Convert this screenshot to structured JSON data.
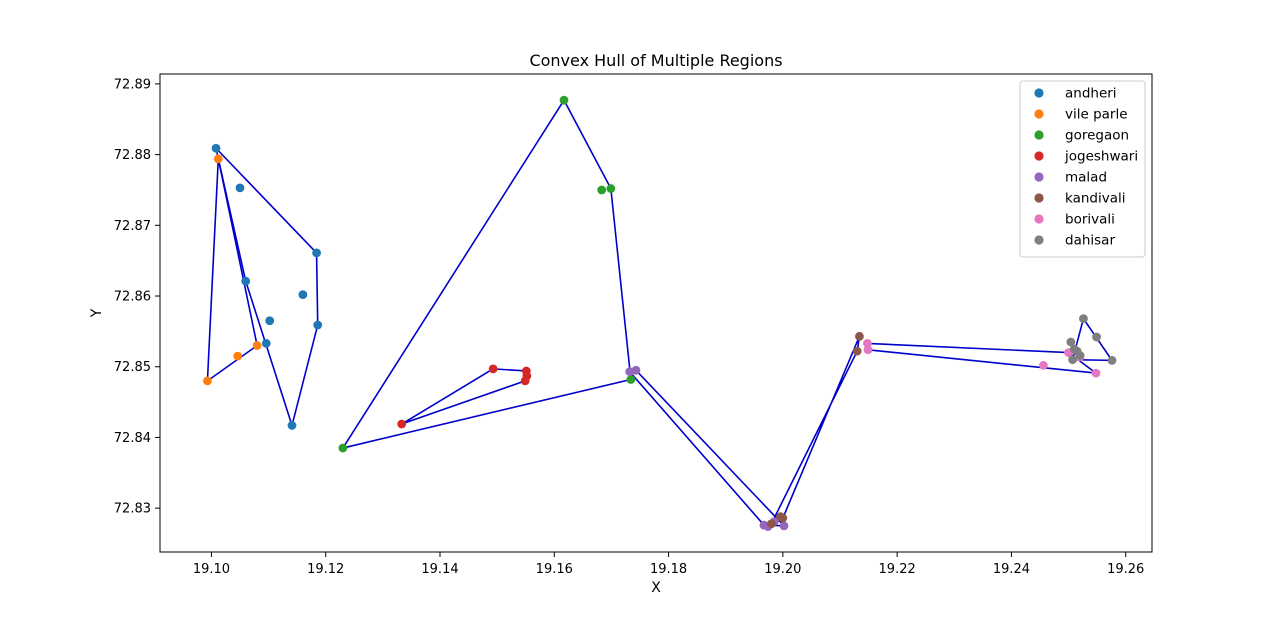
{
  "chart_data": {
    "type": "scatter",
    "title": "Convex Hull of Multiple Regions",
    "xlabel": "X",
    "ylabel": "Y",
    "xlim": [
      19.091,
      19.2646
    ],
    "ylim": [
      72.8238,
      72.8914
    ],
    "xticks": [
      "19.10",
      "19.12",
      "19.14",
      "19.16",
      "19.18",
      "19.20",
      "19.22",
      "19.24",
      "19.26"
    ],
    "yticks": [
      "72.83",
      "72.84",
      "72.85",
      "72.86",
      "72.87",
      "72.88",
      "72.89"
    ],
    "legend_position": "top-right",
    "hull_color": "#0000cc",
    "series": [
      {
        "name": "andheri",
        "color": "#1f77b4",
        "points": [
          [
            19.1008,
            72.8809
          ],
          [
            19.105,
            72.8753
          ],
          [
            19.1184,
            72.8661
          ],
          [
            19.116,
            72.8602
          ],
          [
            19.106,
            72.8621
          ],
          [
            19.1102,
            72.8565
          ],
          [
            19.1186,
            72.8559
          ],
          [
            19.1096,
            72.8533
          ],
          [
            19.1141,
            72.8417
          ]
        ]
      },
      {
        "name": "vile parle",
        "color": "#ff7f0e",
        "points": [
          [
            19.1012,
            72.8794
          ],
          [
            19.108,
            72.853
          ],
          [
            19.1046,
            72.8515
          ],
          [
            19.0993,
            72.848
          ]
        ]
      },
      {
        "name": "goregaon",
        "color": "#2ca02c",
        "points": [
          [
            19.1617,
            72.8877
          ],
          [
            19.1683,
            72.875
          ],
          [
            19.1699,
            72.8752
          ],
          [
            19.1734,
            72.8482
          ],
          [
            19.123,
            72.8385
          ]
        ]
      },
      {
        "name": "jogeshwari",
        "color": "#d62728",
        "points": [
          [
            19.1493,
            72.8497
          ],
          [
            19.1551,
            72.8494
          ],
          [
            19.1552,
            72.8487
          ],
          [
            19.1549,
            72.848
          ],
          [
            19.1333,
            72.8419
          ]
        ]
      },
      {
        "name": "malad",
        "color": "#9467bd",
        "points": [
          [
            19.1743,
            72.8495
          ],
          [
            19.1732,
            72.8493
          ],
          [
            19.1967,
            72.8276
          ],
          [
            19.1985,
            72.8281
          ],
          [
            19.2002,
            72.8275
          ],
          [
            19.1974,
            72.8274
          ]
        ]
      },
      {
        "name": "kandivali",
        "color": "#8c564b",
        "points": [
          [
            19.2134,
            72.8543
          ],
          [
            19.213,
            72.8522
          ],
          [
            19.1996,
            72.8288
          ],
          [
            19.198,
            72.8278
          ],
          [
            19.2,
            72.8286
          ]
        ]
      },
      {
        "name": "borivali",
        "color": "#e377c2",
        "points": [
          [
            19.2148,
            72.8533
          ],
          [
            19.2149,
            72.8524
          ],
          [
            19.2456,
            72.8502
          ],
          [
            19.2548,
            72.8491
          ],
          [
            19.25,
            72.852
          ],
          [
            19.252,
            72.8514
          ]
        ]
      },
      {
        "name": "dahisar",
        "color": "#7f7f7f",
        "points": [
          [
            19.2526,
            72.8568
          ],
          [
            19.2549,
            72.8542
          ],
          [
            19.2576,
            72.8509
          ],
          [
            19.2504,
            72.8535
          ],
          [
            19.251,
            72.8525
          ],
          [
            19.2515,
            72.8522
          ],
          [
            19.2507,
            72.851
          ],
          [
            19.252,
            72.8516
          ]
        ]
      }
    ],
    "hulls": [
      [
        [
          19.1008,
          72.8809
        ],
        [
          19.1184,
          72.8661
        ],
        [
          19.1186,
          72.8559
        ],
        [
          19.1141,
          72.8417
        ],
        [
          19.106,
          72.8621
        ],
        [
          19.1008,
          72.8809
        ]
      ],
      [
        [
          19.1012,
          72.8794
        ],
        [
          19.108,
          72.853
        ],
        [
          19.0993,
          72.848
        ],
        [
          19.1012,
          72.8794
        ]
      ],
      [
        [
          19.1617,
          72.8877
        ],
        [
          19.1699,
          72.8752
        ],
        [
          19.1734,
          72.8482
        ],
        [
          19.123,
          72.8385
        ],
        [
          19.1617,
          72.8877
        ]
      ],
      [
        [
          19.1493,
          72.8497
        ],
        [
          19.1551,
          72.8494
        ],
        [
          19.1549,
          72.848
        ],
        [
          19.1333,
          72.8419
        ],
        [
          19.1493,
          72.8497
        ]
      ],
      [
        [
          19.1743,
          72.8495
        ],
        [
          19.2002,
          72.8275
        ],
        [
          19.1967,
          72.8276
        ],
        [
          19.1732,
          72.8493
        ],
        [
          19.1743,
          72.8495
        ]
      ],
      [
        [
          19.2134,
          72.8543
        ],
        [
          19.2,
          72.8286
        ],
        [
          19.198,
          72.8278
        ],
        [
          19.213,
          72.8522
        ],
        [
          19.2134,
          72.8543
        ]
      ],
      [
        [
          19.2148,
          72.8533
        ],
        [
          19.25,
          72.852
        ],
        [
          19.2548,
          72.8491
        ],
        [
          19.2149,
          72.8524
        ],
        [
          19.2148,
          72.8533
        ]
      ],
      [
        [
          19.2526,
          72.8568
        ],
        [
          19.2576,
          72.8509
        ],
        [
          19.2507,
          72.851
        ],
        [
          19.2526,
          72.8568
        ]
      ]
    ]
  }
}
